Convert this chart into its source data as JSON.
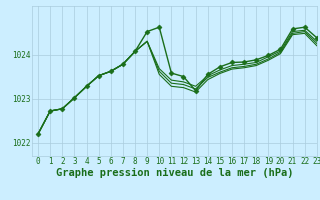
{
  "title": "Graphe pression niveau de la mer (hPa)",
  "background_color": "#cceeff",
  "grid_color": "#aaccdd",
  "line_color": "#1a6e1a",
  "xlim": [
    -0.5,
    23
  ],
  "ylim": [
    1021.7,
    1025.1
  ],
  "yticks": [
    1022,
    1023,
    1024
  ],
  "xticks": [
    0,
    1,
    2,
    3,
    4,
    5,
    6,
    7,
    8,
    9,
    10,
    11,
    12,
    13,
    14,
    15,
    16,
    17,
    18,
    19,
    20,
    21,
    22,
    23
  ],
  "series_main": [
    1022.2,
    1022.72,
    1022.77,
    1023.02,
    1023.28,
    1023.52,
    1023.62,
    1023.78,
    1024.07,
    1024.52,
    1024.62,
    1023.58,
    1023.5,
    1023.18,
    1023.55,
    1023.72,
    1023.82,
    1023.83,
    1023.88,
    1023.98,
    1024.12,
    1024.58,
    1024.62,
    1024.38
  ],
  "series_other": [
    [
      1022.2,
      1022.72,
      1022.77,
      1023.02,
      1023.28,
      1023.52,
      1023.62,
      1023.78,
      1024.07,
      1024.3,
      1023.68,
      1023.42,
      1023.38,
      1023.28,
      1023.52,
      1023.65,
      1023.75,
      1023.78,
      1023.82,
      1023.95,
      1024.08,
      1024.52,
      1024.55,
      1024.3
    ],
    [
      1022.2,
      1022.72,
      1022.77,
      1023.02,
      1023.28,
      1023.52,
      1023.62,
      1023.78,
      1024.07,
      1024.3,
      1023.62,
      1023.35,
      1023.32,
      1023.22,
      1023.48,
      1023.6,
      1023.7,
      1023.73,
      1023.78,
      1023.9,
      1024.05,
      1024.48,
      1024.52,
      1024.25
    ],
    [
      1022.2,
      1022.72,
      1022.77,
      1023.02,
      1023.28,
      1023.52,
      1023.62,
      1023.78,
      1024.07,
      1024.3,
      1023.55,
      1023.28,
      1023.25,
      1023.15,
      1023.43,
      1023.57,
      1023.67,
      1023.7,
      1023.75,
      1023.87,
      1024.02,
      1024.45,
      1024.48,
      1024.2
    ]
  ],
  "marker_size": 2.5,
  "linewidth_main": 1.0,
  "linewidth_other": 0.8,
  "tick_fontsize": 5.5,
  "label_fontsize": 7.5,
  "tick_color": "#1a6e1a"
}
